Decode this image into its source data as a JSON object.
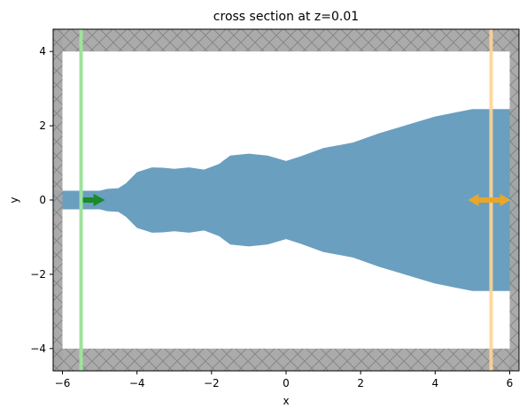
{
  "title": "cross section at z=0.01",
  "xlabel": "x",
  "ylabel": "y",
  "x_ticks": [
    {
      "value": -6,
      "label": "−6"
    },
    {
      "value": -4,
      "label": "−4"
    },
    {
      "value": -2,
      "label": "−2"
    },
    {
      "value": 0,
      "label": "0"
    },
    {
      "value": 2,
      "label": "2"
    },
    {
      "value": 4,
      "label": "4"
    },
    {
      "value": 6,
      "label": "6"
    }
  ],
  "y_ticks": [
    {
      "value": -4,
      "label": "−4"
    },
    {
      "value": -2,
      "label": "−2"
    },
    {
      "value": 0,
      "label": "0"
    },
    {
      "value": 2,
      "label": "2"
    },
    {
      "value": 4,
      "label": "4"
    }
  ],
  "chart_data": {
    "type": "cross-section",
    "xlim": [
      -6.25,
      6.25
    ],
    "ylim": [
      -4.6,
      4.6
    ],
    "colors": {
      "structure": "#6a9fc0",
      "pml": "#a6a6a6",
      "source": "#1a8a2a",
      "source_plane": "#9ee39c",
      "monitor": "#e8a72a",
      "monitor_plane": "#ffd592"
    },
    "source_plane_x": -5.5,
    "monitor_plane_x": 5.5,
    "pml_boundaries": {
      "x_min": -6.0,
      "x_max": 6.0,
      "y_min": -4.0,
      "y_max": 4.0
    },
    "structure_profile": [
      [
        -6.25,
        0.25
      ],
      [
        -5.0,
        0.25
      ],
      [
        -4.8,
        0.3
      ],
      [
        -4.5,
        0.32
      ],
      [
        -4.3,
        0.45
      ],
      [
        -4.0,
        0.75
      ],
      [
        -3.6,
        0.88
      ],
      [
        -3.3,
        0.87
      ],
      [
        -3.0,
        0.84
      ],
      [
        -2.6,
        0.88
      ],
      [
        -2.2,
        0.82
      ],
      [
        -1.8,
        0.97
      ],
      [
        -1.5,
        1.2
      ],
      [
        -1.0,
        1.25
      ],
      [
        -0.5,
        1.2
      ],
      [
        0.0,
        1.05
      ],
      [
        0.4,
        1.18
      ],
      [
        1.0,
        1.4
      ],
      [
        1.8,
        1.55
      ],
      [
        2.5,
        1.8
      ],
      [
        3.0,
        1.95
      ],
      [
        3.5,
        2.1
      ],
      [
        4.0,
        2.25
      ],
      [
        4.5,
        2.35
      ],
      [
        5.0,
        2.45
      ],
      [
        5.5,
        2.45
      ],
      [
        6.25,
        2.45
      ]
    ]
  }
}
